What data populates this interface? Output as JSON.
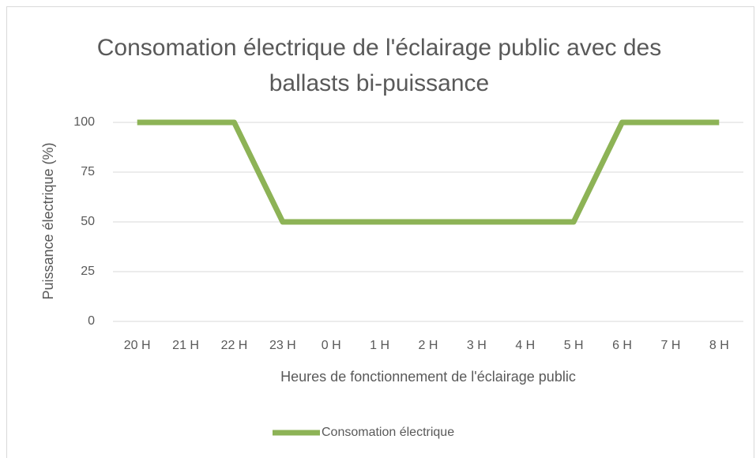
{
  "chart_data": {
    "type": "line",
    "title": "Consomation électrique de l'éclairage public avec des ballasts bi-puissance",
    "xlabel": "Heures de fonctionnement de l'éclairage public",
    "ylabel": "Puissance électrique (%)",
    "categories": [
      "20 H",
      "21 H",
      "22 H",
      "23 H",
      "0 H",
      "1 H",
      "2 H",
      "3 H",
      "4 H",
      "5 H",
      "6 H",
      "7 H",
      "8 H"
    ],
    "series": [
      {
        "name": "Consomation électrique",
        "color": "#8db356",
        "values": [
          100,
          100,
          100,
          50,
          50,
          50,
          50,
          50,
          50,
          50,
          100,
          100,
          100
        ]
      }
    ],
    "ylim": [
      0,
      100
    ],
    "yticks": [
      0,
      25,
      50,
      75,
      100
    ],
    "grid": true,
    "legend": "bottom"
  }
}
